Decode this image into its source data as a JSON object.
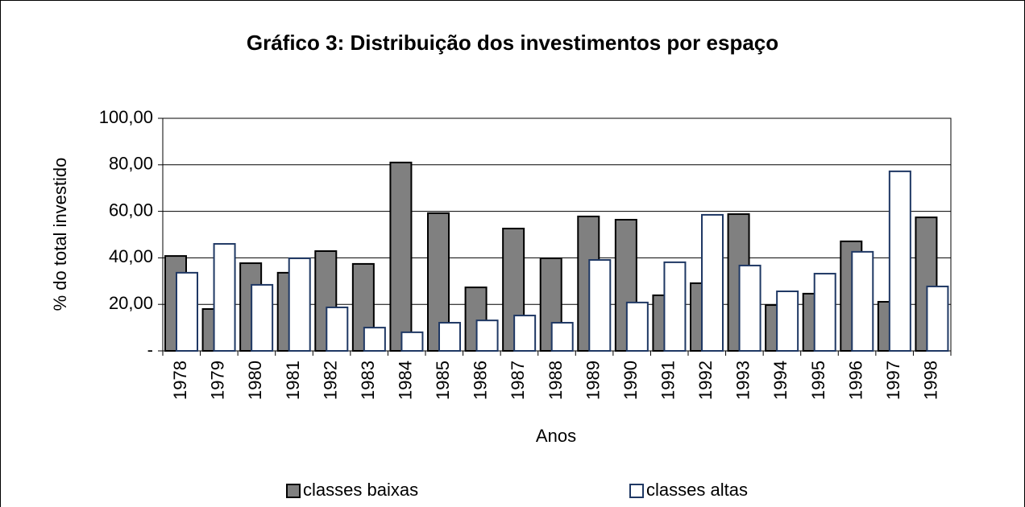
{
  "chart_data": {
    "type": "bar",
    "title": "Gráfico 3: Distribuição dos investimentos por espaço",
    "xlabel": "Anos",
    "ylabel": "% do total investido",
    "categories": [
      "1978",
      "1979",
      "1980",
      "1981",
      "1982",
      "1983",
      "1984",
      "1985",
      "1986",
      "1987",
      "1988",
      "1989",
      "1990",
      "1991",
      "1992",
      "1993",
      "1994",
      "1995",
      "1996",
      "1997",
      "1998"
    ],
    "series": [
      {
        "name": "classes baixas",
        "color": "#808080",
        "values": [
          40.8,
          18,
          37.7,
          33.6,
          42.9,
          37.4,
          81,
          59.2,
          27.3,
          52.6,
          39.8,
          57.8,
          56.4,
          23.9,
          29.1,
          58.8,
          19.7,
          24.6,
          47.1,
          21.1,
          57.4
        ]
      },
      {
        "name": "classes altas",
        "color": "#ffffff",
        "values": [
          33.6,
          46,
          28.4,
          39.8,
          18.7,
          10,
          8,
          12.1,
          13.1,
          15.2,
          12.1,
          39.1,
          20.8,
          38.1,
          58.5,
          36.7,
          25.6,
          33.2,
          42.6,
          77.2,
          27.7
        ]
      }
    ],
    "ylim": [
      0,
      100
    ],
    "yticks": [
      {
        "value": 0,
        "label": "-"
      },
      {
        "value": 20,
        "label": "20,00"
      },
      {
        "value": 40,
        "label": "40,00"
      },
      {
        "value": 60,
        "label": "60,00"
      },
      {
        "value": 80,
        "label": "80,00"
      },
      {
        "value": 100,
        "label": "100,00"
      }
    ],
    "grid": true,
    "legend": "bottom"
  }
}
